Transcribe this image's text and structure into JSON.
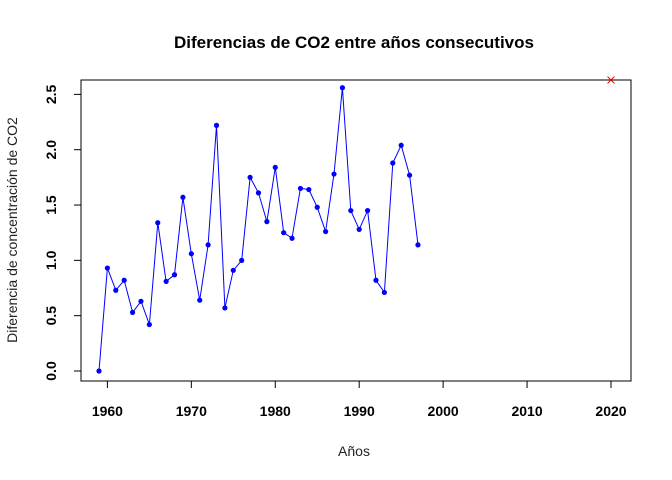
{
  "chart_data": {
    "type": "line",
    "title": "Diferencias de CO2 entre años consecutivos",
    "xlabel": "Años",
    "ylabel": "Diferencia de concentración de CO2",
    "xlim": [
      1959,
      2020
    ],
    "ylim": [
      0,
      2.6
    ],
    "xticks": [
      1960,
      1970,
      1980,
      1990,
      2000,
      2010,
      2020
    ],
    "yticks": [
      "0.0",
      "0.5",
      "1.0",
      "1.5",
      "2.0",
      "2.5"
    ],
    "grid": false,
    "series": [
      {
        "color": "#0000ff",
        "marker": "filled-circle",
        "x": [
          1959,
          1960,
          1961,
          1962,
          1963,
          1964,
          1965,
          1966,
          1967,
          1968,
          1969,
          1970,
          1971,
          1972,
          1973,
          1974,
          1975,
          1976,
          1977,
          1978,
          1979,
          1980,
          1981,
          1982,
          1983,
          1984,
          1985,
          1986,
          1987,
          1988,
          1989,
          1990,
          1991,
          1992,
          1993,
          1994,
          1995,
          1996,
          1997
        ],
        "y": [
          0.0,
          0.93,
          0.73,
          0.82,
          0.53,
          0.63,
          0.42,
          1.34,
          0.81,
          0.87,
          1.57,
          1.06,
          0.64,
          1.14,
          2.22,
          0.57,
          0.91,
          1.0,
          1.75,
          1.61,
          1.35,
          1.84,
          1.25,
          1.2,
          1.65,
          1.64,
          1.48,
          1.26,
          1.78,
          2.56,
          1.45,
          1.28,
          1.45,
          0.82,
          0.71,
          1.88,
          2.04,
          1.77,
          1.14
        ]
      }
    ],
    "annotations": [
      {
        "x": 2020,
        "y": 2.63,
        "marker": "x",
        "color": "#ff0000"
      }
    ]
  }
}
